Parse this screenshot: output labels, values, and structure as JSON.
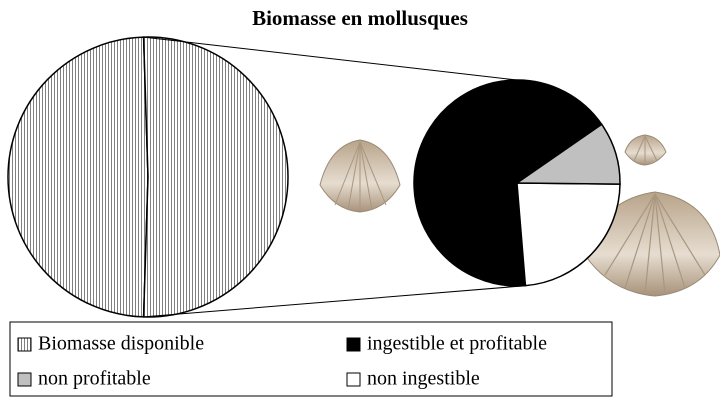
{
  "chart_data": {
    "type": "pie-of-pie",
    "title": "Biomasse en mollusques",
    "categories": [
      "Biomasse disponible",
      "ingestible et profitable",
      "non profitable",
      "non ingestible"
    ],
    "values": [
      49,
      34,
      5,
      12
    ],
    "colors": [
      "#808080",
      "#000000",
      "#c0c0c0",
      "#ffffff"
    ]
  }
}
